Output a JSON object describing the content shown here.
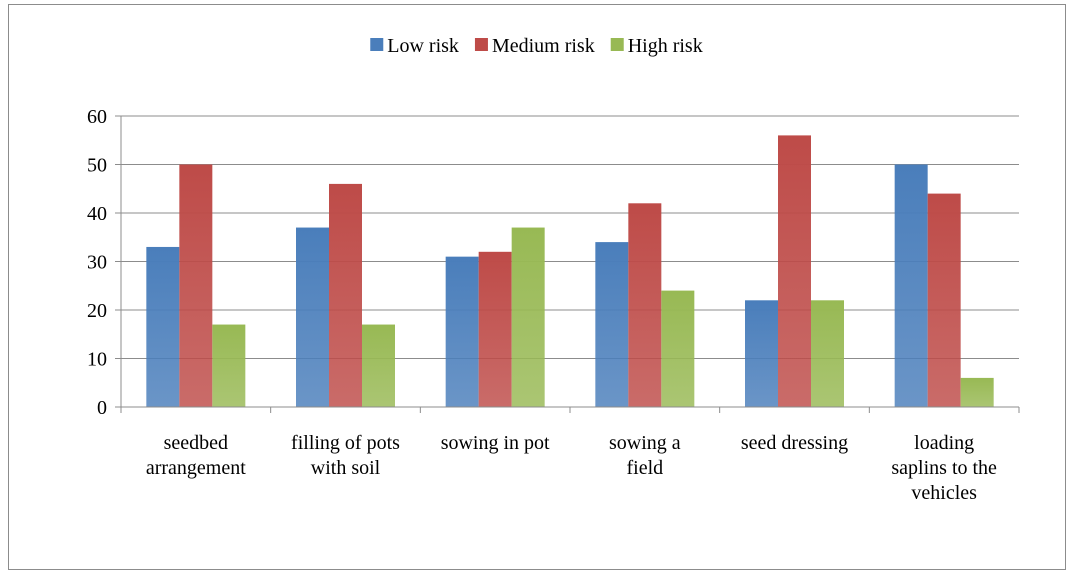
{
  "chart_data": {
    "type": "bar",
    "title": "",
    "xlabel": "",
    "ylabel": "",
    "ylim": [
      0,
      60
    ],
    "yticks": [
      0,
      10,
      20,
      30,
      40,
      50,
      60
    ],
    "grid": true,
    "legend_position": "top",
    "categories": [
      [
        "seedbed",
        "arrangement"
      ],
      [
        "filling of pots",
        "with soil"
      ],
      [
        "sowing in pot"
      ],
      [
        "sowing a",
        "field"
      ],
      [
        "seed dressing"
      ],
      [
        "loading",
        "saplins to the",
        "vehicles"
      ]
    ],
    "series": [
      {
        "name": "Low risk",
        "color": "#4a7ebb",
        "values": [
          33,
          37,
          31,
          34,
          22,
          50
        ]
      },
      {
        "name": "Medium risk",
        "color": "#be4b48",
        "values": [
          50,
          46,
          32,
          42,
          56,
          44
        ]
      },
      {
        "name": "High risk",
        "color": "#98b954",
        "values": [
          17,
          17,
          37,
          24,
          22,
          6
        ]
      }
    ]
  }
}
